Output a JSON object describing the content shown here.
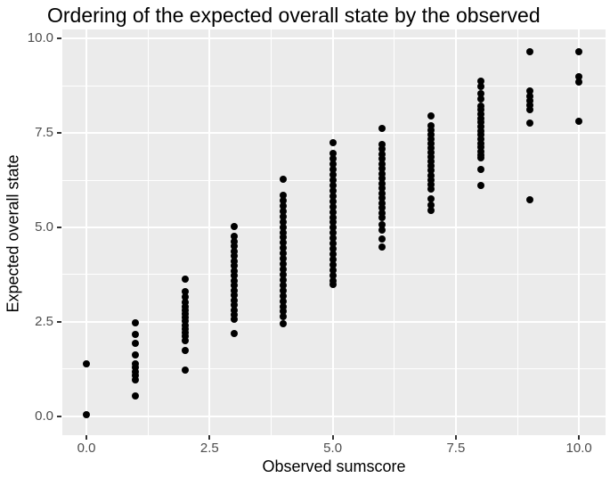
{
  "chart_data": {
    "type": "scatter",
    "title": "Ordering of the expected overall state by the observed",
    "xlabel": "Observed sumscore",
    "ylabel": "Expected overall state",
    "x_ticks": [
      "0.0",
      "2.5",
      "5.0",
      "7.5",
      "10.0"
    ],
    "x_tick_values": [
      0,
      2.5,
      5,
      7.5,
      10
    ],
    "y_ticks": [
      "10.0",
      "7.5",
      "5.0",
      "2.5",
      "0.0"
    ],
    "y_tick_values": [
      10,
      7.5,
      5,
      2.5,
      0
    ],
    "x_minor_values": [
      1.25,
      3.75,
      6.25,
      8.75
    ],
    "y_minor_values": [
      1.25,
      3.75,
      6.25,
      8.75
    ],
    "xlim": [
      -0.49,
      10.54
    ],
    "ylim": [
      -0.5,
      10.24
    ],
    "grid": true,
    "legend": "none",
    "point_color": "#000000",
    "panel_bg": "#EBEBEB",
    "grid_color": "#FFFFFF",
    "tick_label_color": "#4D4D4D",
    "series": [
      {
        "x": 0,
        "y": [
          1.4,
          0.05
        ]
      },
      {
        "x": 1,
        "y": [
          2.48,
          2.17,
          1.93,
          1.63,
          1.4,
          1.29,
          1.18,
          1.07,
          0.96,
          0.55
        ]
      },
      {
        "x": 2,
        "y": [
          3.63,
          3.3,
          3.16,
          3.02,
          2.9,
          2.81,
          2.71,
          2.61,
          2.51,
          2.41,
          2.31,
          2.21,
          2.11,
          2.01,
          1.75,
          1.23
        ]
      },
      {
        "x": 3,
        "y": [
          5.02,
          4.76,
          4.63,
          4.5,
          4.37,
          4.24,
          4.11,
          3.98,
          3.85,
          3.72,
          3.59,
          3.46,
          3.33,
          3.2,
          3.07,
          2.94,
          2.81,
          2.68,
          2.57,
          2.2
        ]
      },
      {
        "x": 4,
        "y": [
          6.28,
          5.85,
          5.71,
          5.57,
          5.43,
          5.29,
          5.15,
          5.01,
          4.87,
          4.73,
          4.59,
          4.45,
          4.31,
          4.17,
          4.03,
          3.89,
          3.75,
          3.61,
          3.47,
          3.33,
          3.19,
          3.05,
          2.91,
          2.77,
          2.64,
          2.46
        ]
      },
      {
        "x": 5,
        "y": [
          7.25,
          6.95,
          6.81,
          6.67,
          6.53,
          6.39,
          6.25,
          6.11,
          5.97,
          5.83,
          5.69,
          5.55,
          5.41,
          5.27,
          5.13,
          4.99,
          4.85,
          4.71,
          4.57,
          4.43,
          4.29,
          4.15,
          4.01,
          3.87,
          3.73,
          3.59,
          3.5
        ]
      },
      {
        "x": 6,
        "y": [
          7.62,
          7.2,
          7.07,
          6.94,
          6.81,
          6.68,
          6.55,
          6.42,
          6.29,
          6.16,
          6.03,
          5.9,
          5.77,
          5.64,
          5.51,
          5.38,
          5.25,
          5.07,
          4.93,
          4.7,
          4.48
        ]
      },
      {
        "x": 7,
        "y": [
          7.95,
          7.7,
          7.58,
          7.46,
          7.34,
          7.22,
          7.1,
          6.98,
          6.86,
          6.74,
          6.62,
          6.5,
          6.38,
          6.26,
          6.14,
          6.02,
          5.75,
          5.6,
          5.45
        ]
      },
      {
        "x": 8,
        "y": [
          8.88,
          8.72,
          8.55,
          8.4,
          8.22,
          8.11,
          8.0,
          7.89,
          7.78,
          7.67,
          7.56,
          7.45,
          7.34,
          7.23,
          7.12,
          7.01,
          6.9,
          6.84,
          6.53,
          6.12
        ]
      },
      {
        "x": 9,
        "y": [
          9.65,
          8.6,
          8.48,
          8.36,
          8.24,
          8.12,
          7.76,
          5.74
        ]
      },
      {
        "x": 10,
        "y": [
          9.65,
          9.0,
          8.85,
          7.8
        ]
      }
    ]
  }
}
